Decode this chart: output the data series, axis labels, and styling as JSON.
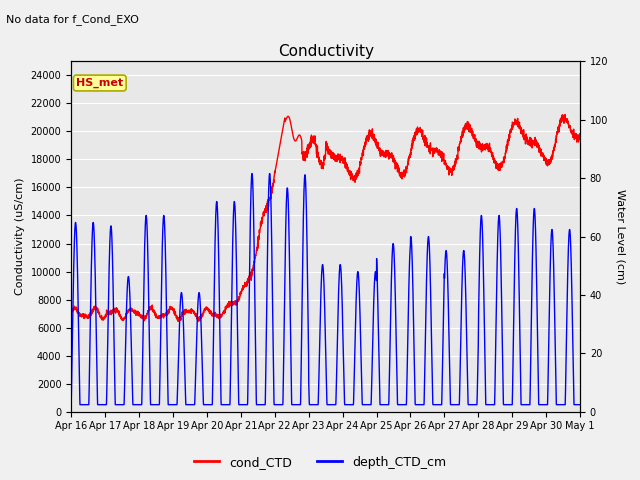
{
  "title": "Conductivity",
  "subtitle": "No data for f_Cond_EXO",
  "ylabel_left": "Conductivity (uS/cm)",
  "ylabel_right": "Water Level (cm)",
  "ylim_left": [
    0,
    25000
  ],
  "ylim_right": [
    0,
    120
  ],
  "yticks_left": [
    0,
    2000,
    4000,
    6000,
    8000,
    10000,
    12000,
    14000,
    16000,
    18000,
    20000,
    22000,
    24000
  ],
  "yticks_right": [
    0,
    20,
    40,
    60,
    80,
    100,
    120
  ],
  "background_color": "#f0f0f0",
  "plot_bg_color": "#e8e8e8",
  "legend_labels": [
    "cond_CTD",
    "depth_CTD_cm"
  ],
  "legend_colors": [
    "red",
    "blue"
  ],
  "hs_met_label": "HS_met",
  "hs_met_color": "#cc0000",
  "hs_met_bg": "#ffff99",
  "x_tick_labels": [
    "Apr 16",
    "Apr 17",
    "Apr 18",
    "Apr 19",
    "Apr 20",
    "Apr 21",
    "Apr 22",
    "Apr 23",
    "Apr 24",
    "Apr 25",
    "Apr 26",
    "Apr 27",
    "Apr 28",
    "Apr 29",
    "Apr 30",
    "May 1"
  ],
  "cond_color": "#ff0000",
  "depth_color": "#0000ff",
  "grid_color": "#ffffff",
  "title_fontsize": 11,
  "label_fontsize": 8,
  "tick_fontsize": 7,
  "legend_fontsize": 9
}
